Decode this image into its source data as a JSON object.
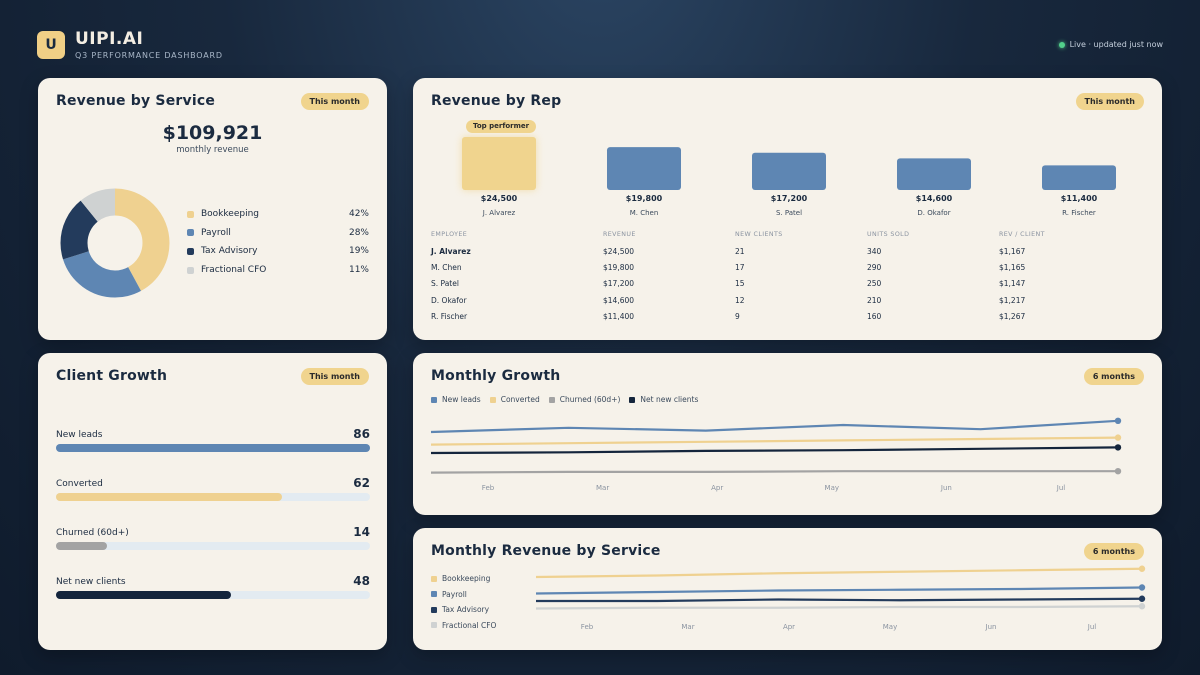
{
  "header": {
    "logo_letter": "U",
    "brand": "UIPI.AI",
    "subtitle": "Q3 PERFORMANCE DASHBOARD",
    "live_text": "Live · updated just now"
  },
  "revenue_by_service": {
    "title": "Revenue by Service",
    "period": "This month",
    "total": "$109,921",
    "total_label": "monthly revenue",
    "items": [
      {
        "label": "Bookkeeping",
        "pct": "42%",
        "value": 42,
        "color": "#efd190"
      },
      {
        "label": "Payroll",
        "pct": "28%",
        "value": 28,
        "color": "#5e86b3"
      },
      {
        "label": "Tax Advisory",
        "pct": "19%",
        "value": 19,
        "color": "#233b5c"
      },
      {
        "label": "Fractional CFO",
        "pct": "11%",
        "value": 11,
        "color": "#cfd2d2"
      }
    ]
  },
  "revenue_by_rep": {
    "title": "Revenue by Rep",
    "period": "This month",
    "top_tag": "Top performer",
    "reps": [
      {
        "name": "J. Alvarez",
        "value_label": "$24,500",
        "value": 24500
      },
      {
        "name": "M. Chen",
        "value_label": "$19,800",
        "value": 19800
      },
      {
        "name": "S. Patel",
        "value_label": "$17,200",
        "value": 17200
      },
      {
        "name": "D. Okafor",
        "value_label": "$14,600",
        "value": 14600
      },
      {
        "name": "R. Fischer",
        "value_label": "$11,400",
        "value": 11400
      }
    ],
    "table": {
      "headers": [
        "EMPLOYEE",
        "REVENUE",
        "NEW CLIENTS",
        "UNITS SOLD",
        "REV / CLIENT"
      ],
      "rows": [
        [
          "J. Alvarez",
          "$24,500",
          "21",
          "340",
          "$1,167"
        ],
        [
          "M. Chen",
          "$19,800",
          "17",
          "290",
          "$1,165"
        ],
        [
          "S. Patel",
          "$17,200",
          "15",
          "250",
          "$1,147"
        ],
        [
          "D. Okafor",
          "$14,600",
          "12",
          "210",
          "$1,217"
        ],
        [
          "R. Fischer",
          "$11,400",
          "9",
          "160",
          "$1,267"
        ]
      ]
    }
  },
  "client_growth": {
    "title": "Client Growth",
    "period": "This month",
    "rows": [
      {
        "label": "New leads",
        "value": "86",
        "fraction": 1.0,
        "color": "#5e86b3"
      },
      {
        "label": "Converted",
        "value": "62",
        "fraction": 0.72,
        "color": "#efd190"
      },
      {
        "label": "Churned (60d+)",
        "value": "14",
        "fraction": 0.163,
        "color": "#a3a3a3"
      },
      {
        "label": "Net new clients",
        "value": "48",
        "fraction": 0.558,
        "color": "#14253c"
      }
    ]
  },
  "monthly_growth": {
    "title": "Monthly Growth",
    "period": "6 months",
    "legend": [
      {
        "label": "New leads",
        "color": "#5e86b3"
      },
      {
        "label": "Converted",
        "color": "#efd190"
      },
      {
        "label": "Churned (60d+)",
        "color": "#a3a3a3"
      },
      {
        "label": "Net new clients",
        "color": "#14253c"
      }
    ]
  },
  "monthly_revenue": {
    "title": "Monthly Revenue by Service",
    "period": "6 months",
    "legend": [
      {
        "label": "Bookkeeping",
        "color": "#efd190"
      },
      {
        "label": "Payroll",
        "color": "#5e86b3"
      },
      {
        "label": "Tax Advisory",
        "color": "#233b5c"
      },
      {
        "label": "Fractional CFO",
        "color": "#cfd2d2"
      }
    ]
  },
  "chart_data": [
    {
      "type": "pie",
      "title": "Revenue by Service",
      "categories": [
        "Bookkeeping",
        "Payroll",
        "Tax Advisory",
        "Fractional CFO"
      ],
      "values": [
        42,
        28,
        19,
        11
      ]
    },
    {
      "type": "bar",
      "title": "Revenue by Rep",
      "categories": [
        "J. Alvarez",
        "M. Chen",
        "S. Patel",
        "D. Okafor",
        "R. Fischer"
      ],
      "values": [
        24500,
        19800,
        17200,
        14600,
        11400
      ]
    },
    {
      "type": "line",
      "title": "Monthly Growth",
      "x": [
        "Feb",
        "Mar",
        "Apr",
        "May",
        "Jun",
        "Jul"
      ],
      "ylim": [
        0,
        100
      ],
      "series": [
        {
          "name": "New leads",
          "color": "#5e86b3",
          "values": [
            70,
            76,
            72,
            80,
            74,
            86
          ]
        },
        {
          "name": "Converted",
          "color": "#efd190",
          "values": [
            52,
            54,
            56,
            58,
            60,
            62
          ]
        },
        {
          "name": "Churned (60d+)",
          "color": "#a3a3a3",
          "values": [
            12,
            13,
            13,
            14,
            14,
            14
          ]
        },
        {
          "name": "Net new clients",
          "color": "#14253c",
          "values": [
            40,
            41,
            43,
            44,
            46,
            48
          ]
        }
      ]
    },
    {
      "type": "line",
      "title": "Monthly Revenue by Service",
      "x": [
        "Feb",
        "Mar",
        "Apr",
        "May",
        "Jun",
        "Jul"
      ],
      "ylim": [
        0,
        100
      ],
      "series": [
        {
          "name": "Bookkeeping",
          "color": "#efd190",
          "values": [
            72,
            74,
            77,
            79,
            81,
            83
          ]
        },
        {
          "name": "Payroll",
          "color": "#5e86b3",
          "values": [
            50,
            52,
            54,
            55,
            56,
            58
          ]
        },
        {
          "name": "Tax Advisory",
          "color": "#233b5c",
          "values": [
            40,
            40,
            42,
            41,
            42,
            43
          ]
        },
        {
          "name": "Fractional CFO",
          "color": "#cfd2d2",
          "values": [
            30,
            31,
            31,
            32,
            32,
            33
          ]
        }
      ]
    }
  ]
}
